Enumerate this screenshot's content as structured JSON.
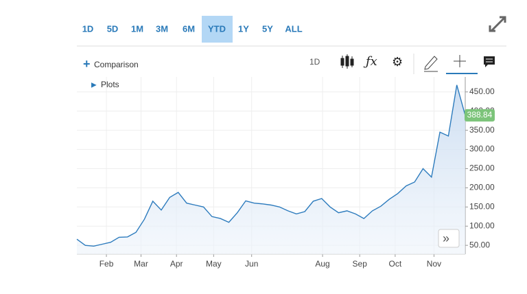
{
  "range_buttons": [
    "1D",
    "5D",
    "1M",
    "3M",
    "6M",
    "YTD",
    "1Y",
    "5Y",
    "ALL"
  ],
  "toolbar": {
    "comparison": "Comparison",
    "interval": "1D",
    "plots": "Plots"
  },
  "chart_data": {
    "type": "line",
    "color": "#2c7bbd",
    "values": [
      66,
      50,
      48,
      53,
      58,
      71,
      72,
      84,
      118,
      165,
      142,
      175,
      188,
      160,
      155,
      150,
      125,
      120,
      110,
      135,
      166,
      160,
      158,
      155,
      150,
      140,
      132,
      138,
      165,
      172,
      150,
      135,
      140,
      132,
      120,
      140,
      152,
      170,
      185,
      205,
      215,
      250,
      228,
      345,
      335,
      468,
      388.84
    ],
    "xlim": [
      0,
      46
    ],
    "xticks": [
      {
        "value": 3.5,
        "label": "Feb"
      },
      {
        "value": 7.6,
        "label": "Mar"
      },
      {
        "value": 11.8,
        "label": "Apr"
      },
      {
        "value": 16.2,
        "label": "May"
      },
      {
        "value": 20.7,
        "label": "Jun"
      },
      {
        "value": 29.1,
        "label": "Aug"
      },
      {
        "value": 33.5,
        "label": "Sep"
      },
      {
        "value": 37.7,
        "label": "Oct"
      },
      {
        "value": 42.3,
        "label": "Nov"
      }
    ],
    "ylim": [
      27,
      489
    ],
    "yticks": [
      {
        "value": 50,
        "label": "50.00"
      },
      {
        "value": 100,
        "label": "100.00"
      },
      {
        "value": 150,
        "label": "150.00"
      },
      {
        "value": 200,
        "label": "200.00"
      },
      {
        "value": 250,
        "label": "250.00"
      },
      {
        "value": 300,
        "label": "300.00"
      },
      {
        "value": 350,
        "label": "350.00"
      },
      {
        "value": 400,
        "label": "400.00"
      },
      {
        "value": 450,
        "label": "450.00"
      }
    ],
    "grid": true
  }
}
